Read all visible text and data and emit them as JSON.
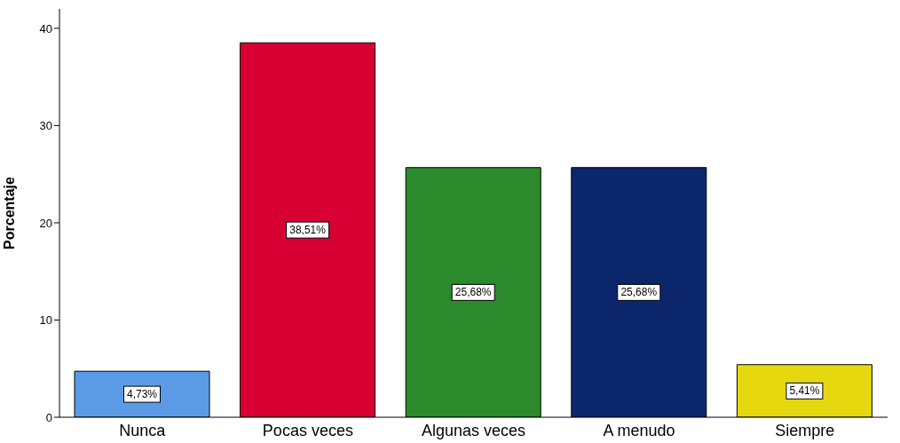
{
  "chart_data": {
    "type": "bar",
    "ylabel": "Porcentaje",
    "categories": [
      "Nunca",
      "Pocas veces",
      "Algunas veces",
      "A menudo",
      "Siempre"
    ],
    "values": [
      4.73,
      38.51,
      25.68,
      25.68,
      5.41
    ],
    "colors": [
      "#5b9be6",
      "#d80032",
      "#2b8a2b",
      "#0c266b",
      "#e6d80f"
    ],
    "value_labels": [
      "4,73%",
      "38,51%",
      "25,68%",
      "25,68%",
      "5,41%"
    ],
    "ylim": [
      0,
      42
    ],
    "yticks": [
      0,
      10,
      20,
      30,
      40
    ],
    "grid": false
  }
}
